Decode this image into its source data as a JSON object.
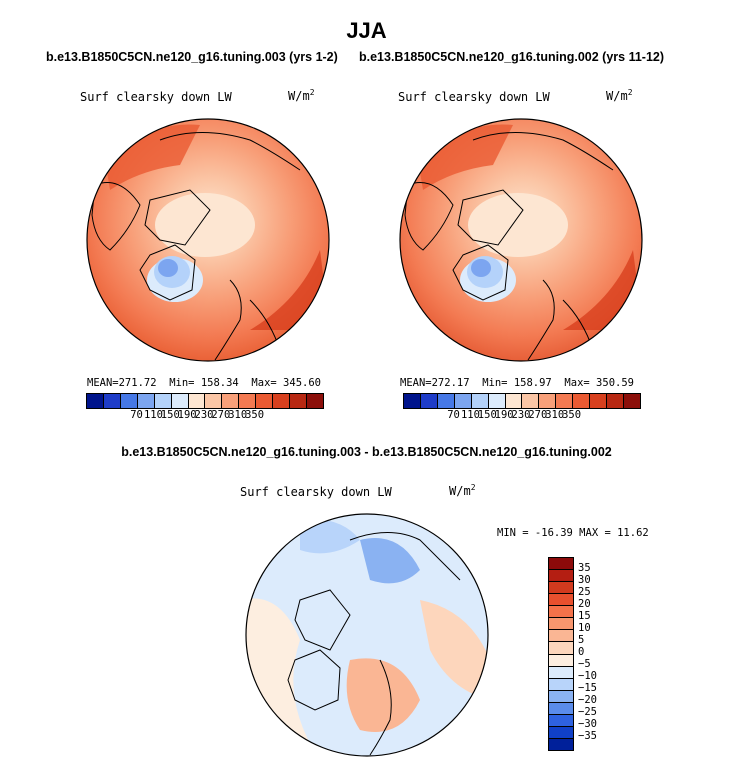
{
  "season": "JJA",
  "cases": {
    "left_title": "b.e13.B1850C5CN.ne120_g16.tuning.003 (yrs 1-2)",
    "right_title": "b.e13.B1850C5CN.ne120_g16.tuning.002 (yrs 11-12)",
    "diff_title": "b.e13.B1850C5CN.ne120_g16.tuning.003 - b.e13.B1850C5CN.ne120_g16.tuning.002"
  },
  "variable": "Surf clearsky down LW",
  "units": "W/m",
  "units_sup": "2",
  "chart_data": [
    {
      "type": "heatmap",
      "projection": "polar-stereographic-north",
      "title": "Surf clearsky down LW",
      "units": "W/m^2",
      "stats": {
        "mean_label": "MEAN=",
        "mean": "271.72",
        "min_label": "Min=",
        "min": "158.34",
        "max_label": "Max=",
        "max": "345.60"
      },
      "levels": [
        "70",
        "110",
        "150",
        "190",
        "230",
        "270",
        "310",
        "350"
      ],
      "colors": [
        "#00148c",
        "#1e3cc8",
        "#4678e6",
        "#7ca5f0",
        "#b4d2fa",
        "#dcebfc",
        "#fde6d2",
        "#fbc6a6",
        "#f8a07a",
        "#f37a52",
        "#ea5a32",
        "#d8401e",
        "#b82812",
        "#8c0f0a"
      ]
    },
    {
      "type": "heatmap",
      "projection": "polar-stereographic-north",
      "title": "Surf clearsky down LW",
      "units": "W/m^2",
      "stats": {
        "mean_label": "MEAN=",
        "mean": "272.17",
        "min_label": "Min=",
        "min": "158.97",
        "max_label": "Max=",
        "max": "350.59"
      },
      "levels": [
        "70",
        "110",
        "150",
        "190",
        "230",
        "270",
        "310",
        "350"
      ],
      "colors": [
        "#00148c",
        "#1e3cc8",
        "#4678e6",
        "#7ca5f0",
        "#b4d2fa",
        "#dcebfc",
        "#fde6d2",
        "#fbc6a6",
        "#f8a07a",
        "#f37a52",
        "#ea5a32",
        "#d8401e",
        "#b82812",
        "#8c0f0a"
      ]
    },
    {
      "type": "heatmap",
      "projection": "polar-stereographic-north",
      "title": "Surf clearsky down LW",
      "units": "W/m^2",
      "stats_text": "MIN = -16.39 MAX =  11.62",
      "levels": [
        "35",
        "30",
        "25",
        "20",
        "15",
        "10",
        "5",
        "0",
        "−5",
        "−10",
        "−15",
        "−20",
        "−25",
        "−30",
        "−35"
      ],
      "colors": [
        "#8c0a0a",
        "#b41e12",
        "#d23a1e",
        "#e8502e",
        "#f4724a",
        "#f8966e",
        "#fab694",
        "#fdd6bc",
        "#fdeee0",
        "#dcebfc",
        "#b8d4fa",
        "#8ab2f2",
        "#5a8ceb",
        "#2e62e0",
        "#1040c8",
        "#00209a"
      ]
    }
  ]
}
